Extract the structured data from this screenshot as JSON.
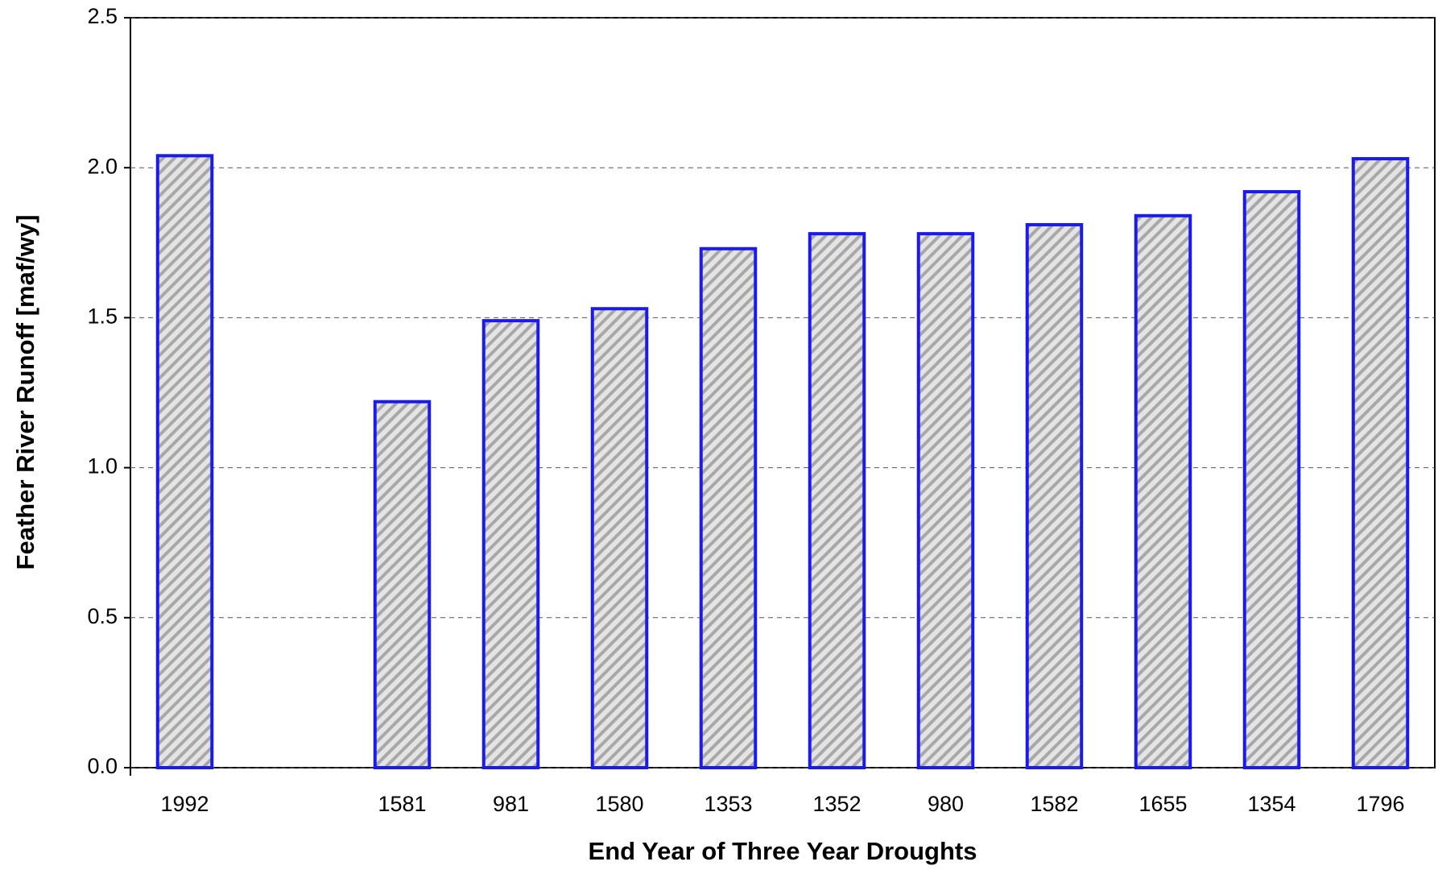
{
  "chart_data": {
    "type": "bar",
    "x_label": "End Year of Three Year Droughts",
    "y_label": "Feather River Runoff [maf/wy]",
    "categories": [
      "1992",
      null,
      "1581",
      "981",
      "1580",
      "1353",
      "1352",
      "980",
      "1582",
      "1655",
      "1354",
      "1796"
    ],
    "values": [
      2.04,
      null,
      1.22,
      1.49,
      1.53,
      1.73,
      1.78,
      1.78,
      1.81,
      1.84,
      1.92,
      2.03
    ],
    "color": "#1a1aee",
    "ylim": [
      0,
      2.5
    ],
    "yticks": [
      {
        "value": 0,
        "label": "0.0"
      },
      0.5,
      {
        "value": 1,
        "label": "1.0"
      },
      1.5,
      {
        "value": 2,
        "label": "2.0"
      },
      2.5
    ],
    "grid": true
  }
}
